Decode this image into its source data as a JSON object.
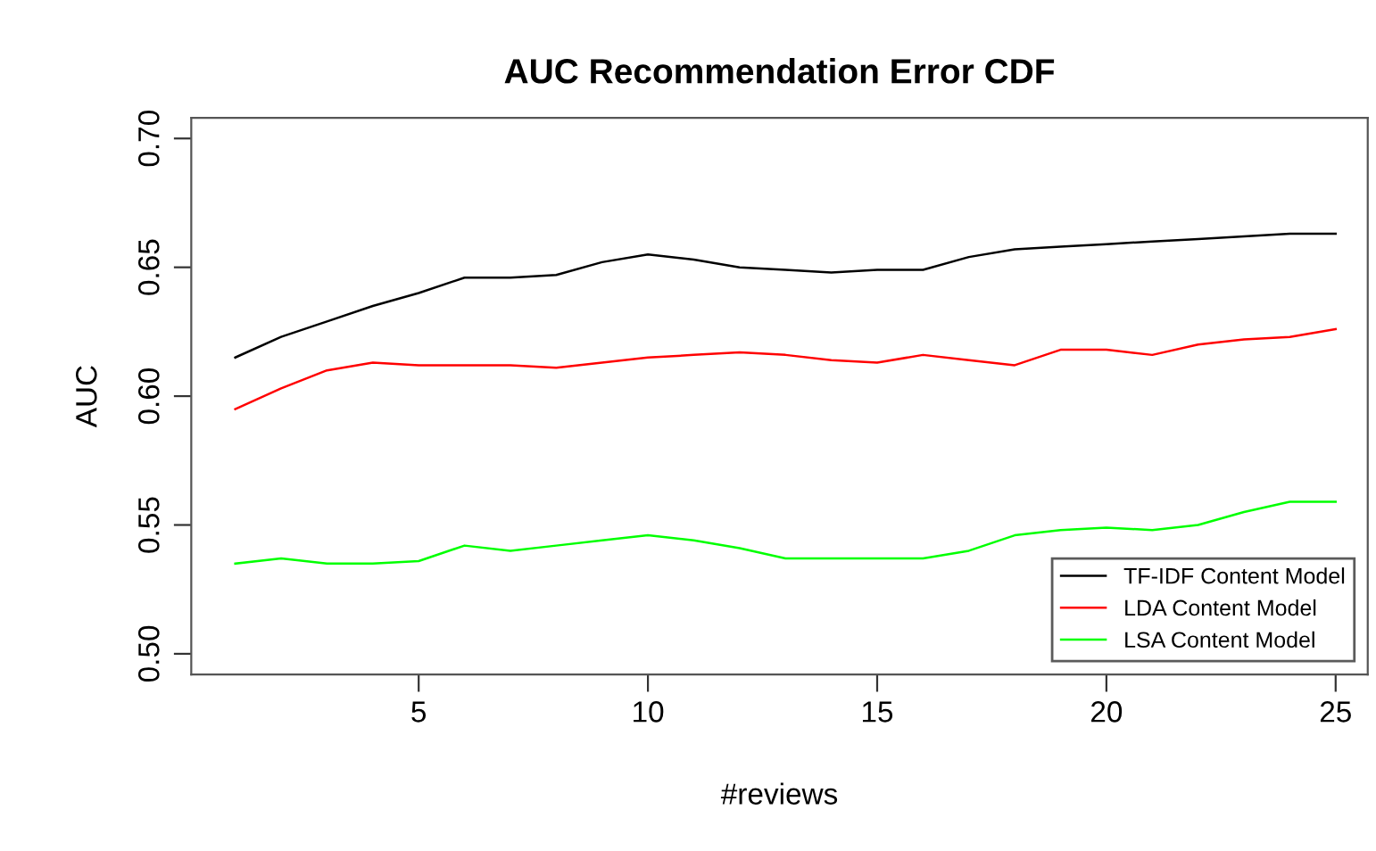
{
  "chart_data": {
    "type": "line",
    "title": "AUC Recommendation Error CDF",
    "xlabel": "#reviews",
    "ylabel": "AUC",
    "x": [
      1,
      2,
      3,
      4,
      5,
      6,
      7,
      8,
      9,
      10,
      11,
      12,
      13,
      14,
      15,
      16,
      17,
      18,
      19,
      20,
      21,
      22,
      23,
      24,
      25
    ],
    "series": [
      {
        "name": "TF-IDF Content Model",
        "color": "#000000",
        "values": [
          0.615,
          0.623,
          0.629,
          0.635,
          0.64,
          0.646,
          0.646,
          0.647,
          0.652,
          0.655,
          0.653,
          0.65,
          0.649,
          0.648,
          0.649,
          0.649,
          0.654,
          0.657,
          0.658,
          0.659,
          0.66,
          0.661,
          0.662,
          0.663,
          0.663
        ]
      },
      {
        "name": "LDA Content Model",
        "color": "#ff0000",
        "values": [
          0.595,
          0.603,
          0.61,
          0.613,
          0.612,
          0.612,
          0.612,
          0.611,
          0.613,
          0.615,
          0.616,
          0.617,
          0.616,
          0.614,
          0.613,
          0.616,
          0.614,
          0.612,
          0.618,
          0.618,
          0.616,
          0.62,
          0.622,
          0.623,
          0.626
        ]
      },
      {
        "name": "LSA Content Model",
        "color": "#00ff00",
        "values": [
          0.535,
          0.537,
          0.535,
          0.535,
          0.536,
          0.542,
          0.54,
          0.542,
          0.544,
          0.546,
          0.544,
          0.541,
          0.537,
          0.537,
          0.537,
          0.537,
          0.54,
          0.546,
          0.548,
          0.549,
          0.548,
          0.55,
          0.555,
          0.559,
          0.559
        ]
      }
    ],
    "xlim": [
      0.04,
      25.7
    ],
    "ylim": [
      0.492,
      0.708
    ],
    "xticks": [
      5,
      10,
      15,
      20,
      25
    ],
    "yticks": [
      {
        "value": 0.5,
        "label": "0.50"
      },
      {
        "value": 0.55,
        "label": "0.55"
      },
      {
        "value": 0.6,
        "label": "0.60"
      },
      {
        "value": 0.65,
        "label": "0.65"
      },
      {
        "value": 0.7,
        "label": "0.70"
      }
    ],
    "legend": "bottom right",
    "grid": false,
    "marker": "none",
    "line_style": "solid"
  }
}
